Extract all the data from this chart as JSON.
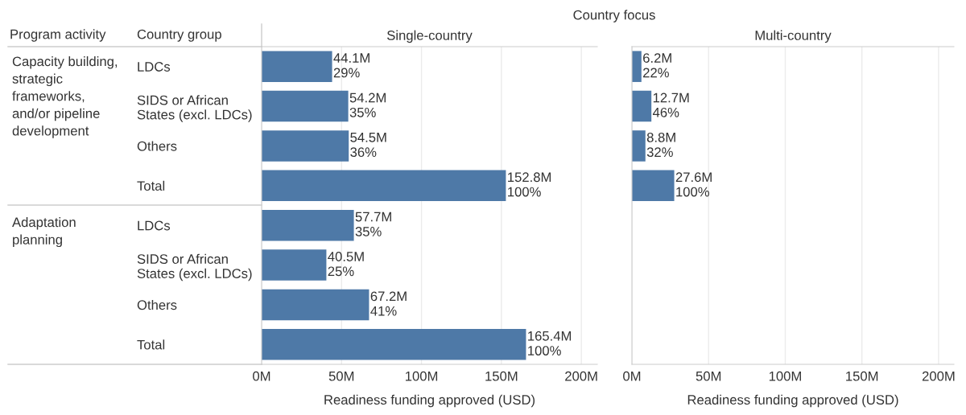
{
  "chart_data": [
    {
      "type": "bar",
      "orientation": "horizontal",
      "title": "Single-country",
      "xlabel": "Readiness funding approved (USD)",
      "color": "#4e79a7",
      "grid": "x",
      "categories": [
        "LDCs",
        "SIDS or African\nStates (excl. LDCs)",
        "Others",
        "Total",
        "LDCs",
        "SIDS or African\nStates (excl. LDCs)",
        "Others",
        "Total"
      ],
      "values": [
        44.1,
        54.2,
        54.5,
        152.8,
        57.7,
        40.5,
        67.2,
        165.4
      ],
      "value_labels": [
        "44.1M",
        "54.2M",
        "54.5M",
        "152.8M",
        "57.7M",
        "40.5M",
        "67.2M",
        "165.4M"
      ],
      "xlim": [
        0,
        210
      ],
      "xticks": [
        {
          "value": 0,
          "label": "0M"
        },
        {
          "value": 50,
          "label": "50M"
        },
        {
          "value": 100,
          "label": "100M"
        },
        {
          "value": 150,
          "label": "150M"
        },
        {
          "value": 200,
          "label": "200M"
        }
      ],
      "annotations": [
        "Program activity",
        "Country group",
        "Country focus",
        "Capacity building,\nstrategic\nframeworks,\nand/or pipeline\ndevelopment",
        "Adaptation\nplanning",
        "29%",
        "35%",
        "36%",
        "100%",
        "35%",
        "25%",
        "41%",
        "100%"
      ]
    },
    {
      "type": "bar",
      "orientation": "horizontal",
      "title": "Multi-country",
      "xlabel": "Readiness funding approved (USD)",
      "color": "#4e79a7",
      "grid": "x",
      "tick_labels": "x",
      "categories": [
        null,
        null,
        null,
        null,
        null,
        null,
        null,
        null
      ],
      "values": [
        6.2,
        12.7,
        8.8,
        27.6,
        null,
        null,
        null,
        null
      ],
      "value_labels": [
        "6.2M",
        "12.7M",
        "8.8M",
        "27.6M",
        null,
        null,
        null,
        null
      ],
      "xlim": [
        0,
        210
      ],
      "xticks": [
        {
          "value": 0,
          "label": "0M"
        },
        {
          "value": 50,
          "label": "50M"
        },
        {
          "value": 100,
          "label": "100M"
        },
        {
          "value": 150,
          "label": "150M"
        },
        {
          "value": 200,
          "label": "200M"
        }
      ],
      "annotations": [
        "22%",
        "46%",
        "32%",
        "100%"
      ]
    }
  ]
}
